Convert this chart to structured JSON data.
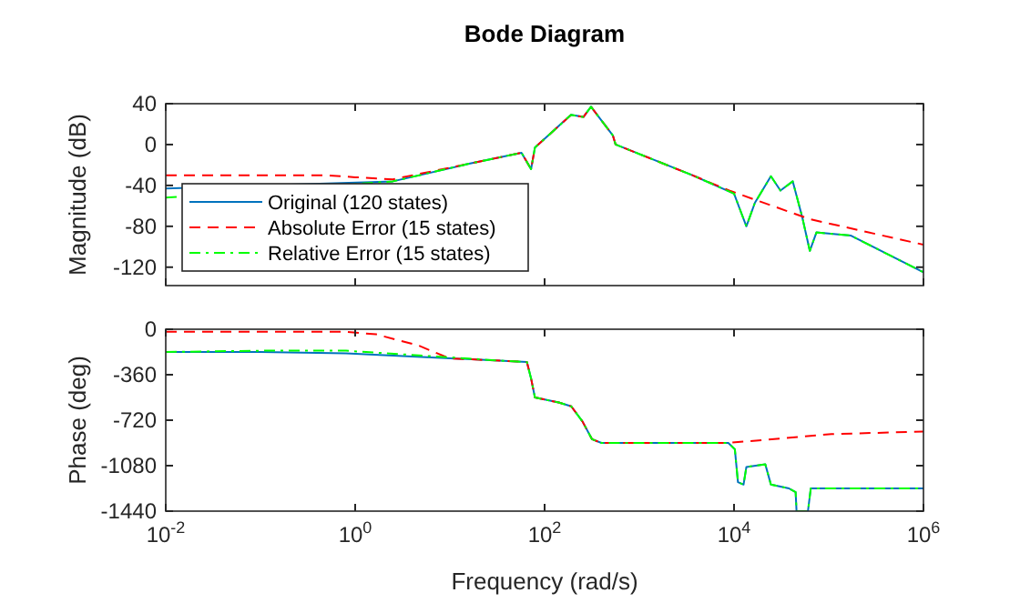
{
  "chart_data": [
    {
      "type": "line",
      "title": "Bode Diagram",
      "ylabel": "Magnitude (dB)",
      "log": "x",
      "grid": false,
      "legend": "bottom left",
      "tick_labels": "y",
      "marker": "none",
      "xlim": [
        0.01,
        1000000
      ],
      "xticks": [
        {
          "value": 0.01,
          "label": null
        },
        {
          "value": 1,
          "label": null
        },
        {
          "value": 100,
          "label": null
        },
        {
          "value": 10000,
          "label": null
        },
        {
          "value": 1000000,
          "label": null
        }
      ],
      "ylim": [
        -138,
        40
      ],
      "yticks": [
        -120,
        -80,
        -40,
        0,
        40
      ],
      "series": [
        {
          "name": "Original (120 states)",
          "color": "#0072bd",
          "line_style": "solid",
          "x": [
            0.01,
            2.5,
            15.5,
            57,
            72,
            79,
            190,
            257,
            309,
            525,
            562,
            3630,
            10000,
            11500,
            13500,
            16600,
            24500,
            30900,
            41700,
            52500,
            63100,
            74100,
            170000,
            1000000
          ],
          "values": [
            -43,
            -36,
            -19,
            -8,
            -24,
            -3,
            29,
            27,
            37,
            9,
            0,
            -30,
            -48,
            -63,
            -80,
            -57,
            -31,
            -45,
            -36,
            -71,
            -104,
            -86,
            -89,
            -125
          ]
        },
        {
          "name": "Absolute Error (15 states)",
          "color": "#ff0000",
          "line_style": "dashed",
          "x": [
            0.01,
            0.1,
            0.5,
            1,
            2.5,
            15.5,
            57,
            72,
            79,
            190,
            257,
            309,
            525,
            562,
            3630,
            8900,
            63100,
            1000000
          ],
          "values": [
            -30,
            -30,
            -30,
            -32,
            -34,
            -19,
            -8,
            -24,
            -3,
            29,
            27,
            37,
            9,
            0,
            -30,
            -45,
            -73,
            -98
          ]
        },
        {
          "name": "Relative Error (15 states)",
          "color": "#00ff00",
          "line_style": "dashdot",
          "x": [
            0.01,
            2.5,
            15.5,
            57,
            72,
            79,
            190,
            257,
            309,
            525,
            562,
            3630,
            10000,
            11500,
            13500,
            16600,
            24500,
            30900,
            41700,
            52500,
            63100,
            74100,
            170000,
            1000000
          ],
          "values": [
            -52,
            -36,
            -19,
            -8,
            -24,
            -3,
            29,
            27,
            37,
            9,
            0,
            -30,
            -48,
            -63,
            -80,
            -57,
            -31,
            -45,
            -36,
            -71,
            -104,
            -86,
            -89,
            -125
          ]
        }
      ]
    },
    {
      "type": "line",
      "xlabel": "Frequency (rad/s)",
      "ylabel": "Phase (deg)",
      "log": "x",
      "grid": false,
      "marker": "none",
      "xlim": [
        0.01,
        1000000
      ],
      "xticks": [
        {
          "value": 0.01,
          "label": "10$^{-2}$"
        },
        {
          "value": 1,
          "label": "10$^{0}$"
        },
        {
          "value": 100,
          "label": "10$^{2}$"
        },
        {
          "value": 10000,
          "label": "10$^{4}$"
        },
        {
          "value": 1000000,
          "label": "10$^{6}$"
        }
      ],
      "ylim": [
        -1440,
        0
      ],
      "yticks": [
        -1440,
        -1080,
        -720,
        -360,
        0
      ],
      "series": [
        {
          "color": "#0072bd",
          "line_style": "solid",
          "x": [
            0.01,
            0.1,
            0.8,
            37,
            65,
            72,
            79,
            141,
            191,
            251,
            316,
            398,
            8700,
            10200,
            11000,
            12600,
            13500,
            21400,
            24500,
            38000,
            44700,
            45700,
            60300,
            64600,
            1000000
          ],
          "values": [
            -180,
            -180,
            -190,
            -250,
            -260,
            -390,
            -540,
            -580,
            -610,
            -730,
            -870,
            -900,
            -900,
            -950,
            -1210,
            -1230,
            -1090,
            -1070,
            -1230,
            -1260,
            -1290,
            -1440,
            -1440,
            -1260,
            -1260
          ]
        },
        {
          "color": "#ff0000",
          "line_style": "dashed",
          "x": [
            0.01,
            0.1,
            0.8,
            1.66,
            4.7,
            9.8,
            37,
            65,
            72,
            79,
            141,
            191,
            251,
            316,
            398,
            8700,
            107000,
            1000000
          ],
          "values": [
            -20,
            -20,
            -20,
            -40,
            -130,
            -230,
            -250,
            -260,
            -390,
            -540,
            -580,
            -610,
            -730,
            -870,
            -900,
            -900,
            -830,
            -810
          ]
        },
        {
          "color": "#00ff00",
          "line_style": "dashdot",
          "x": [
            0.01,
            0.1,
            0.8,
            37,
            65,
            72,
            79,
            141,
            191,
            251,
            316,
            398,
            8700,
            10200,
            11000,
            12600,
            13500,
            21400,
            24500,
            38000,
            44700,
            45700,
            60300,
            64600,
            1000000
          ],
          "values": [
            -180,
            -170,
            -170,
            -250,
            -260,
            -390,
            -540,
            -580,
            -610,
            -730,
            -870,
            -900,
            -900,
            -950,
            -1210,
            -1230,
            -1090,
            -1070,
            -1230,
            -1260,
            -1290,
            -1440,
            -1440,
            -1260,
            -1260
          ]
        }
      ]
    }
  ]
}
